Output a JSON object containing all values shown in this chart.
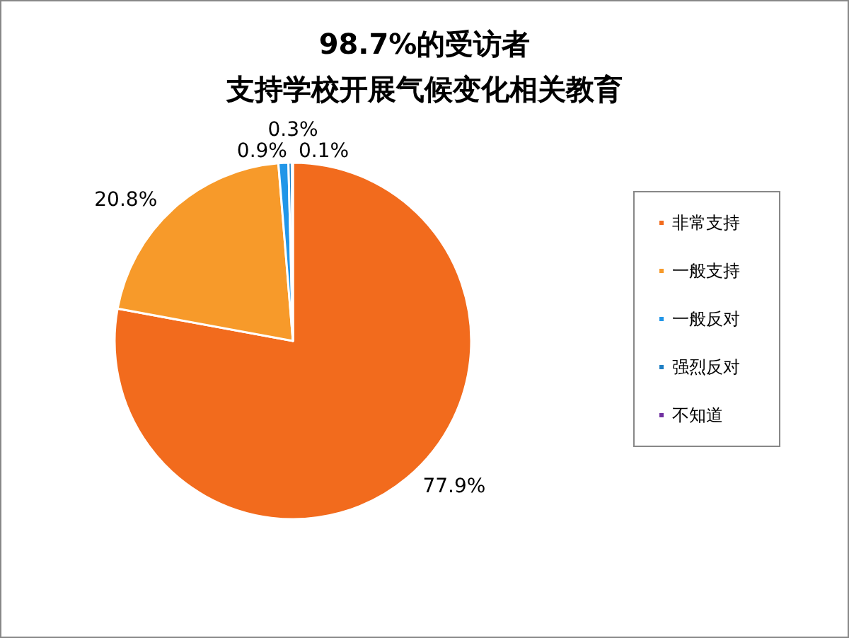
{
  "chart_data": {
    "type": "pie",
    "title": "98.7%的受访者",
    "subtitle": "支持学校开展气候变化相关教育",
    "categories": [
      "非常支持",
      "一般支持",
      "一般反对",
      "强烈反对",
      "不知道"
    ],
    "values": [
      77.9,
      20.8,
      0.9,
      0.3,
      0.1
    ],
    "colors": [
      "#f26b1d",
      "#f79a2a",
      "#2196e8",
      "#1f7fc4",
      "#7030a0"
    ],
    "value_labels": [
      "77.9%",
      "20.8%",
      "0.9%",
      "0.3%",
      "0.1%"
    ],
    "legend": "right"
  }
}
